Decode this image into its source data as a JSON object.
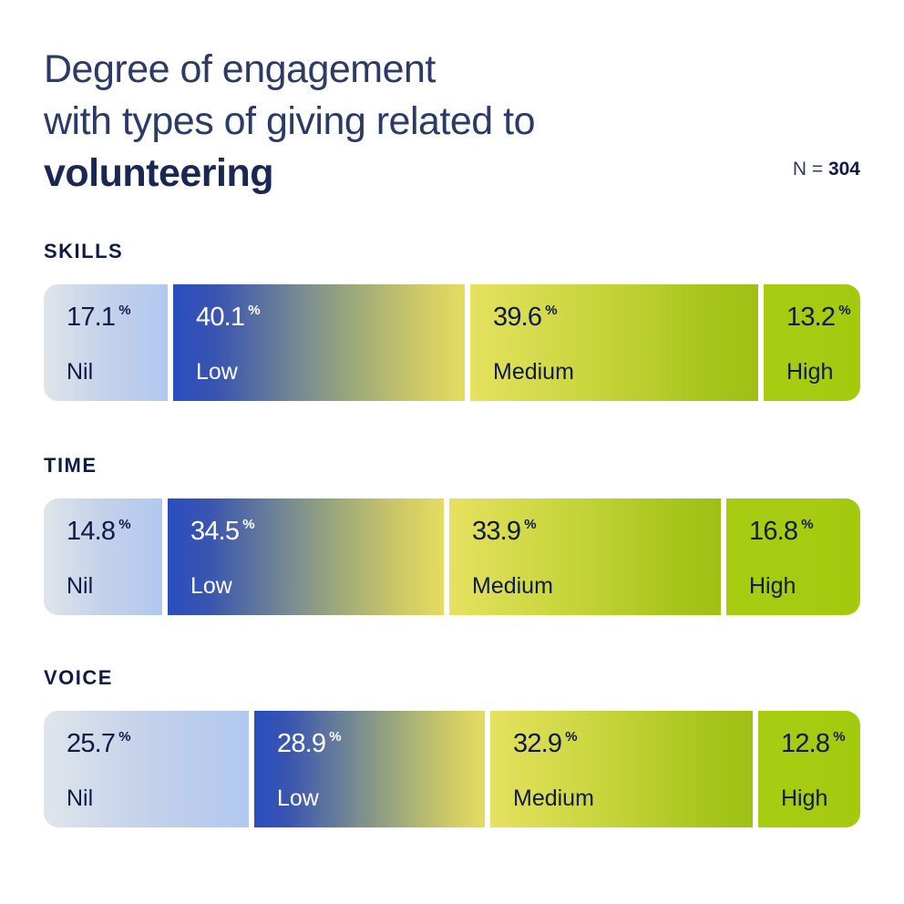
{
  "header": {
    "title_lines": [
      "Degree of engagement",
      "with types of giving related to"
    ],
    "title_bold": "volunteering",
    "n_label": "N =",
    "n_value": "304"
  },
  "colors": {
    "text_dark": "#0f1b45",
    "nil": "#c3d1ea",
    "low": "#2a4ec0",
    "medium": "#e6e160",
    "high": "#a4ca0e"
  },
  "chart_data": {
    "type": "bar",
    "orientation": "horizontal-stacked",
    "title": "Degree of engagement with types of giving related to volunteering",
    "subtitle": "N = 304",
    "unit": "%",
    "categories": [
      "SKILLS",
      "TIME",
      "VOICE"
    ],
    "series": [
      {
        "name": "Nil",
        "values": [
          17.1,
          14.8,
          25.7
        ],
        "labels": [
          "17.1",
          "14.8",
          "25.7"
        ]
      },
      {
        "name": "Low",
        "values": [
          40.1,
          34.5,
          28.9
        ],
        "labels": [
          "40.1",
          "34.5",
          "28.9"
        ]
      },
      {
        "name": "Medium",
        "values": [
          39.6,
          33.9,
          32.9
        ],
        "labels": [
          "39.6",
          "33.9",
          "32.9"
        ]
      },
      {
        "name": "High",
        "values": [
          13.2,
          16.8,
          12.8
        ],
        "labels": [
          "13.2",
          "16.8",
          "12.8"
        ]
      }
    ],
    "legend": "inline",
    "grid": false,
    "percent_symbol": "%"
  }
}
